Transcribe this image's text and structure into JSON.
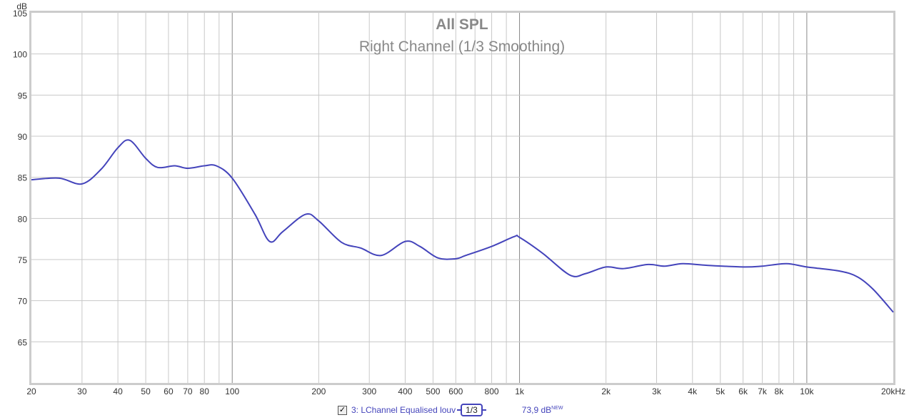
{
  "chart_data": {
    "type": "line",
    "title": "All SPL",
    "subtitle": "Right Channel (1/3 Smoothing)",
    "ylabel": "dB",
    "xscale": "log",
    "xlim": [
      20,
      20000
    ],
    "ylim": [
      60,
      105
    ],
    "grid": true,
    "y_ticks": [
      105,
      100,
      95,
      90,
      85,
      80,
      75,
      70,
      65
    ],
    "x_ticks": [
      {
        "v": 20,
        "label": "20"
      },
      {
        "v": 30,
        "label": "30"
      },
      {
        "v": 40,
        "label": "40"
      },
      {
        "v": 50,
        "label": "50"
      },
      {
        "v": 60,
        "label": "60"
      },
      {
        "v": 70,
        "label": "70"
      },
      {
        "v": 80,
        "label": "80"
      },
      {
        "v": 100,
        "label": "100"
      },
      {
        "v": 200,
        "label": "200"
      },
      {
        "v": 300,
        "label": "300"
      },
      {
        "v": 400,
        "label": "400"
      },
      {
        "v": 500,
        "label": "500"
      },
      {
        "v": 600,
        "label": "600"
      },
      {
        "v": 800,
        "label": "800"
      },
      {
        "v": 1000,
        "label": "1k"
      },
      {
        "v": 2000,
        "label": "2k"
      },
      {
        "v": 3000,
        "label": "3k"
      },
      {
        "v": 4000,
        "label": "4k"
      },
      {
        "v": 5000,
        "label": "5k"
      },
      {
        "v": 6000,
        "label": "6k"
      },
      {
        "v": 7000,
        "label": "7k"
      },
      {
        "v": 8000,
        "label": "8k"
      },
      {
        "v": 10000,
        "label": "10k"
      },
      {
        "v": 20000,
        "label": "20kHz"
      }
    ],
    "series": [
      {
        "name": "3: LChannel Equalised louv",
        "color": "#4444bb",
        "x": [
          20,
          25,
          30,
          35,
          40,
          44,
          50,
          55,
          63,
          70,
          80,
          88,
          100,
          120,
          135,
          150,
          180,
          200,
          240,
          280,
          330,
          400,
          450,
          520,
          600,
          650,
          800,
          960,
          1000,
          1200,
          1500,
          1700,
          2000,
          2300,
          2800,
          3200,
          3700,
          4500,
          6000,
          7000,
          8500,
          10000,
          13000,
          15000,
          17000,
          20000
        ],
        "y": [
          84.7,
          84.9,
          84.2,
          86.0,
          88.6,
          89.5,
          87.3,
          86.2,
          86.4,
          86.1,
          86.4,
          86.4,
          84.9,
          80.5,
          77.2,
          78.4,
          80.5,
          79.7,
          77.1,
          76.4,
          75.5,
          77.2,
          76.6,
          75.2,
          75.1,
          75.5,
          76.6,
          77.8,
          77.7,
          75.8,
          73.1,
          73.3,
          74.1,
          73.9,
          74.4,
          74.2,
          74.5,
          74.3,
          74.1,
          74.2,
          74.5,
          74.1,
          73.6,
          72.9,
          71.4,
          68.6
        ]
      }
    ]
  },
  "legend": {
    "checked": true,
    "check_glyph": "✓",
    "label": "3: LChannel Equalised louv",
    "smoothing": "1/3",
    "value": "73,9 dB",
    "value_badge": "NEW"
  }
}
